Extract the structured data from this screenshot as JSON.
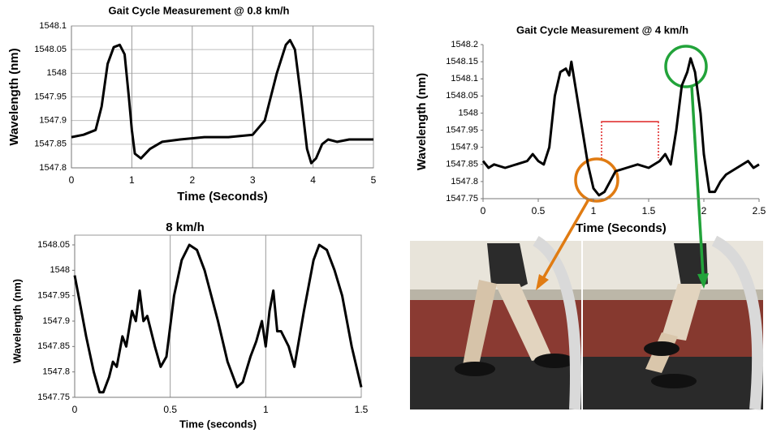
{
  "chart_data": [
    {
      "type": "line",
      "title": "Gait Cycle Measurement  @ 0.8 km/h",
      "x_label": "Time (Seconds)",
      "y_label": "Wavelength (nm)",
      "x": [
        0,
        0.2,
        0.4,
        0.5,
        0.6,
        0.7,
        0.8,
        0.88,
        0.95,
        1.0,
        1.05,
        1.15,
        1.3,
        1.5,
        1.8,
        2.2,
        2.6,
        3.0,
        3.2,
        3.4,
        3.55,
        3.62,
        3.7,
        3.8,
        3.9,
        3.97,
        4.05,
        4.15,
        4.25,
        4.4,
        4.6,
        4.8,
        5
      ],
      "series": [
        {
          "color": "#000000",
          "values": [
            1547.865,
            1547.87,
            1547.88,
            1547.93,
            1548.02,
            1548.055,
            1548.06,
            1548.04,
            1547.95,
            1547.88,
            1547.83,
            1547.82,
            1547.84,
            1547.855,
            1547.86,
            1547.865,
            1547.865,
            1547.87,
            1547.9,
            1548.0,
            1548.06,
            1548.07,
            1548.05,
            1547.95,
            1547.84,
            1547.81,
            1547.82,
            1547.85,
            1547.86,
            1547.855,
            1547.86,
            1547.86,
            1547.86
          ]
        }
      ],
      "xlim": [
        0,
        5
      ],
      "xticks": [
        0,
        1,
        2,
        3,
        4,
        5
      ],
      "ylim": [
        1547.8,
        1548.1
      ],
      "yticks": [
        1547.8,
        1547.85,
        1547.9,
        1547.95,
        1548,
        1548.05,
        1548.1
      ],
      "grid": "both"
    },
    {
      "type": "line",
      "title": "Gait Cycle Measurement @ 4 km/h",
      "x_label": "Time (Seconds)",
      "y_label": "Wavelength (nm)",
      "x": [
        0,
        0.05,
        0.1,
        0.2,
        0.3,
        0.4,
        0.45,
        0.5,
        0.55,
        0.6,
        0.65,
        0.7,
        0.75,
        0.78,
        0.8,
        0.85,
        0.9,
        0.95,
        1.0,
        1.05,
        1.1,
        1.15,
        1.2,
        1.3,
        1.4,
        1.5,
        1.6,
        1.65,
        1.7,
        1.75,
        1.8,
        1.85,
        1.88,
        1.92,
        1.97,
        2.0,
        2.05,
        2.1,
        2.15,
        2.2,
        2.3,
        2.4,
        2.45,
        2.5
      ],
      "series": [
        {
          "color": "#000000",
          "values": [
            1547.86,
            1547.84,
            1547.85,
            1547.84,
            1547.85,
            1547.86,
            1547.88,
            1547.86,
            1547.85,
            1547.9,
            1548.05,
            1548.12,
            1548.13,
            1548.11,
            1548.15,
            1548.05,
            1547.95,
            1547.85,
            1547.78,
            1547.76,
            1547.77,
            1547.8,
            1547.83,
            1547.84,
            1547.85,
            1547.84,
            1547.86,
            1547.88,
            1547.85,
            1547.95,
            1548.08,
            1548.12,
            1548.16,
            1548.12,
            1548.0,
            1547.88,
            1547.77,
            1547.77,
            1547.8,
            1547.82,
            1547.84,
            1547.86,
            1547.84,
            1547.85
          ]
        }
      ],
      "xlim": [
        0,
        2.5
      ],
      "xticks": [
        0,
        0.5,
        1,
        1.5,
        2,
        2.5
      ],
      "ylim": [
        1547.75,
        1548.2
      ],
      "yticks": [
        1547.75,
        1547.8,
        1547.85,
        1547.9,
        1547.95,
        1548,
        1548.05,
        1548.1,
        1548.15,
        1548.2
      ],
      "grid": "none"
    },
    {
      "type": "line",
      "title": "8 km/h",
      "x_label": "Time (seconds)",
      "y_label": "Wavelength (nm)",
      "x": [
        0,
        0.03,
        0.06,
        0.1,
        0.13,
        0.15,
        0.18,
        0.2,
        0.22,
        0.25,
        0.27,
        0.3,
        0.32,
        0.34,
        0.36,
        0.38,
        0.42,
        0.45,
        0.48,
        0.52,
        0.56,
        0.6,
        0.64,
        0.68,
        0.75,
        0.8,
        0.85,
        0.88,
        0.92,
        0.95,
        0.98,
        1.0,
        1.02,
        1.04,
        1.06,
        1.08,
        1.12,
        1.15,
        1.2,
        1.25,
        1.28,
        1.32,
        1.36,
        1.4,
        1.45,
        1.5
      ],
      "series": [
        {
          "color": "#000000",
          "values": [
            1547.99,
            1547.93,
            1547.87,
            1547.8,
            1547.76,
            1547.76,
            1547.79,
            1547.82,
            1547.81,
            1547.87,
            1547.85,
            1547.92,
            1547.9,
            1547.96,
            1547.9,
            1547.91,
            1547.85,
            1547.81,
            1547.83,
            1547.95,
            1548.02,
            1548.05,
            1548.04,
            1548.0,
            1547.9,
            1547.82,
            1547.77,
            1547.78,
            1547.83,
            1547.86,
            1547.9,
            1547.85,
            1547.92,
            1547.96,
            1547.88,
            1547.88,
            1547.85,
            1547.81,
            1547.92,
            1548.02,
            1548.05,
            1548.04,
            1548.0,
            1547.95,
            1547.85,
            1547.77
          ]
        }
      ],
      "xlim": [
        0,
        1.5
      ],
      "xticks": [
        0,
        0.5,
        1,
        1.5
      ],
      "ylim": [
        1547.75,
        1548.05
      ],
      "yticks": [
        1547.75,
        1547.8,
        1547.85,
        1547.9,
        1547.95,
        1548,
        1548.05
      ],
      "grid": "x"
    }
  ]
}
